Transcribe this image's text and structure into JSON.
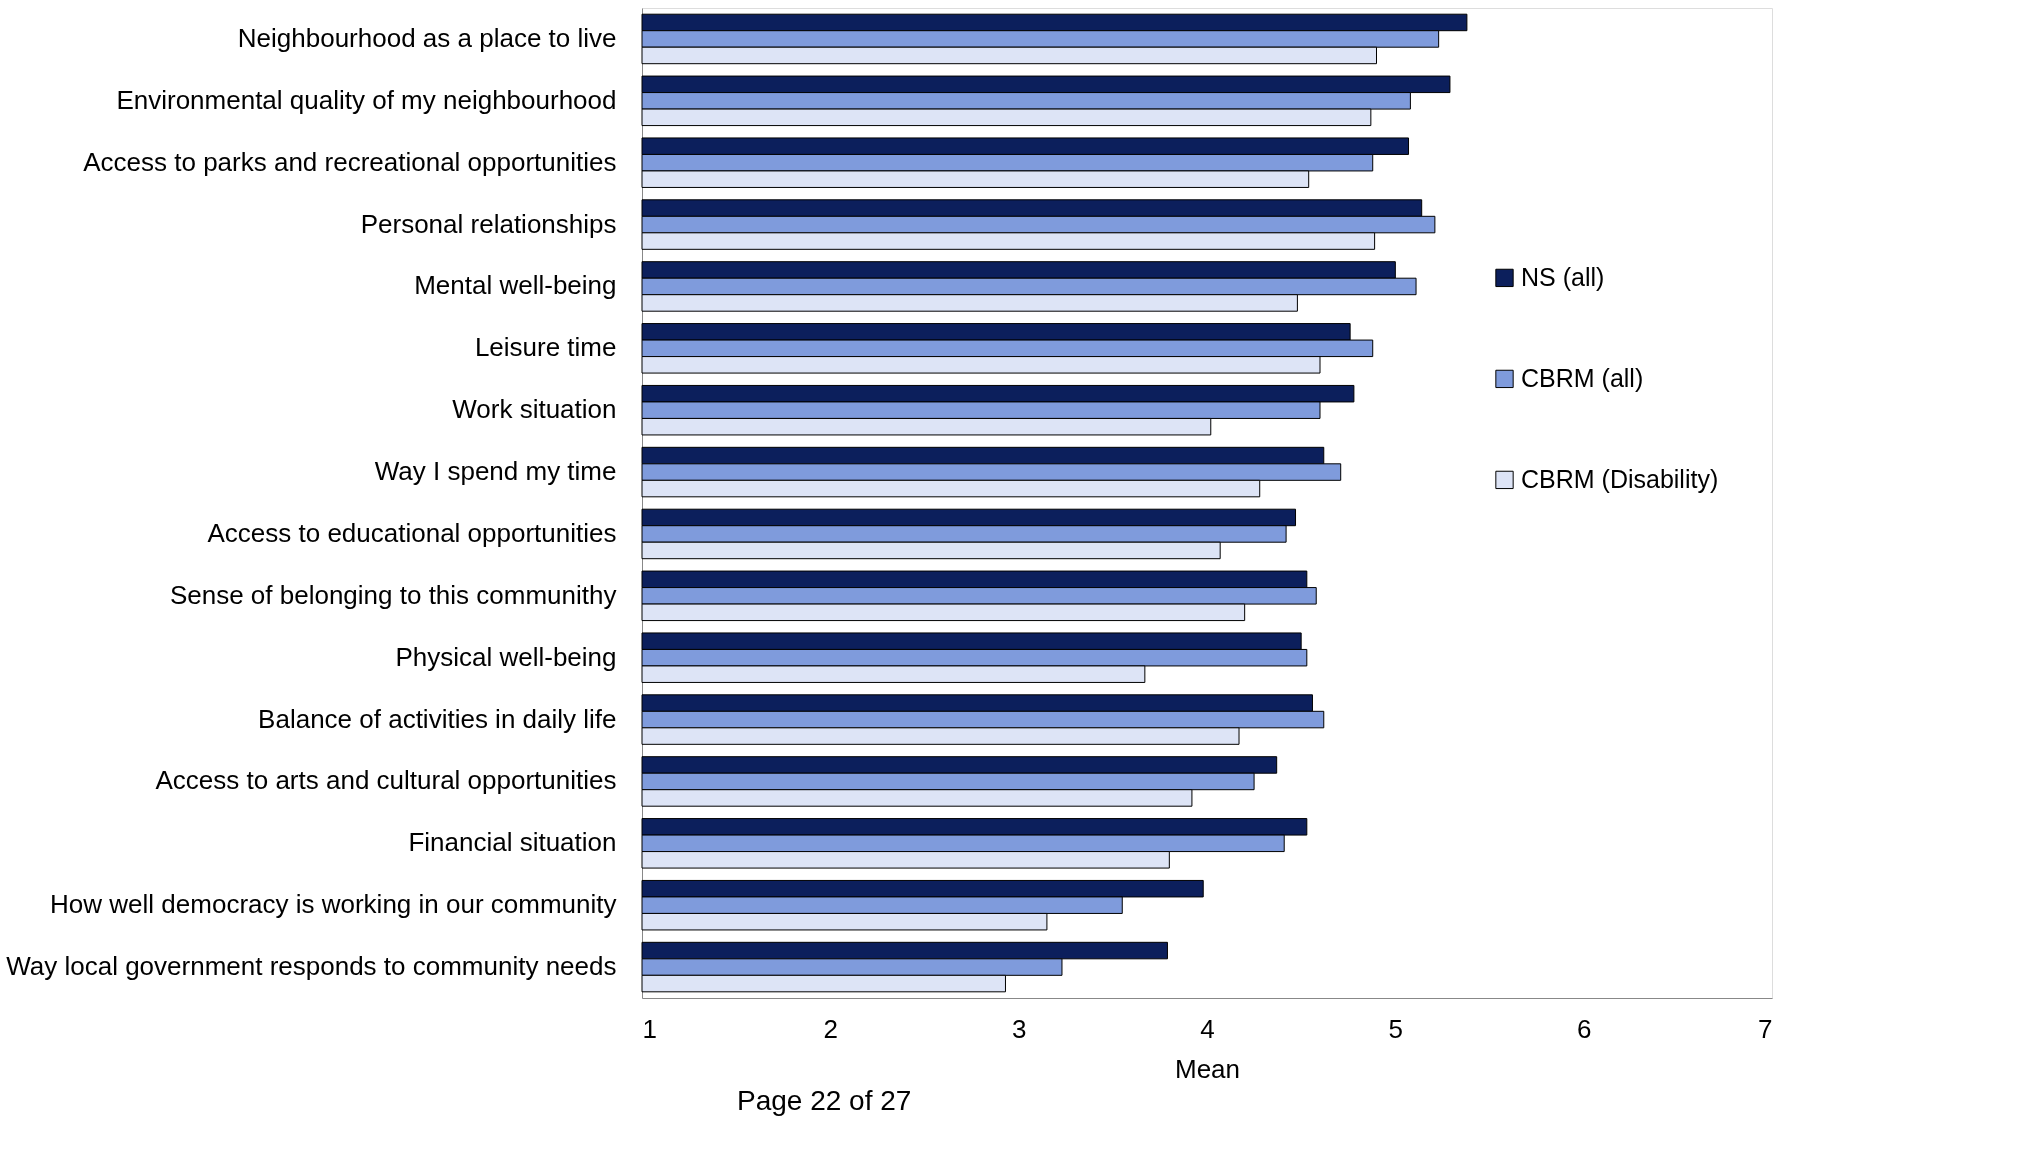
{
  "chart_data": {
    "type": "bar",
    "orientation": "horizontal",
    "xlabel": "Mean",
    "categories": [
      "Neighbourhood as a place to live",
      "Environmental quality of my neighbourhood",
      "Access to parks and recreational opportunities",
      "Personal relationships",
      "Mental well-being",
      "Leisure time",
      "Work situation",
      "Way I spend my time",
      "Access to educational opportunities",
      "Sense of belonging to this communithy",
      "Physical well-being",
      "Balance of activities in daily life",
      "Access to arts and cultural opportunities",
      "Financial situation",
      "How well democracy is working in our community",
      "Way local government responds to community needs"
    ],
    "series": [
      {
        "name": "NS (all)",
        "color": "#0c1f5c",
        "values": [
          5.38,
          5.29,
          5.07,
          5.14,
          5.0,
          4.76,
          4.78,
          4.62,
          4.47,
          4.53,
          4.5,
          4.56,
          4.37,
          4.53,
          3.98,
          3.79
        ]
      },
      {
        "name": "CBRM (all)",
        "color": "#7f9bdc",
        "values": [
          5.23,
          5.08,
          4.88,
          5.21,
          5.11,
          4.88,
          4.6,
          4.71,
          4.42,
          4.58,
          4.53,
          4.62,
          4.25,
          4.41,
          3.55,
          3.23
        ]
      },
      {
        "name": "CBRM (Disability)",
        "color": "#dde4f6",
        "values": [
          4.9,
          4.87,
          4.54,
          4.89,
          4.48,
          4.6,
          4.02,
          4.28,
          4.07,
          4.2,
          3.67,
          4.17,
          3.92,
          3.8,
          3.15,
          2.93
        ]
      }
    ],
    "xlim": [
      1,
      7
    ],
    "xticks": [
      1,
      2,
      3,
      4,
      5,
      6,
      7
    ],
    "grid": false,
    "legend": "right",
    "annotations": [
      "Page 22 of 27"
    ]
  }
}
